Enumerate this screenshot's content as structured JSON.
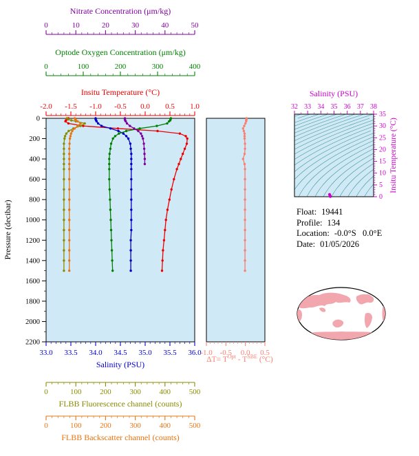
{
  "top_axes": [
    {
      "id": "nitrate",
      "label": "Nitrate Concentration (μm/kg)",
      "color": "#8000a0",
      "ticks": [
        "0",
        "10",
        "20",
        "30",
        "40",
        "50"
      ]
    },
    {
      "id": "oxygen",
      "label": "Optode Oxygen Concentration (μm/kg)",
      "color": "#008000",
      "ticks": [
        "0",
        "100",
        "200",
        "300",
        "400"
      ]
    },
    {
      "id": "insitu-temperature",
      "label": "Insitu Temperature (°C)",
      "color": "#ee0000",
      "ticks": [
        "-2.0",
        "-1.5",
        "-1.0",
        "-0.5",
        "0.0",
        "0.5",
        "1.0"
      ]
    }
  ],
  "bottom_axes": [
    {
      "id": "salinity",
      "label": "Salinity (PSU)",
      "color": "#0000cd",
      "ticks": [
        "33.0",
        "33.5",
        "34.0",
        "34.5",
        "35.0",
        "35.5",
        "36.0"
      ]
    },
    {
      "id": "fluorescence",
      "label": "FLBB Fluorescence channel (counts)",
      "color": "#8b8b00",
      "ticks": [
        "0",
        "100",
        "200",
        "300",
        "400",
        "500"
      ]
    },
    {
      "id": "backscatter",
      "label": "FLBB Backscatter channel (counts)",
      "color": "#e97410",
      "ticks": [
        "0",
        "100",
        "200",
        "300",
        "400",
        "500"
      ]
    }
  ],
  "info": {
    "float_label": "Float:",
    "float_value": "19441",
    "profile_label": "Profile:",
    "profile_value": "134",
    "location_label": "Location:",
    "location_value": "-0.0°S   0.0°E",
    "date_label": "Date:",
    "date_value": "01/05/2026"
  },
  "map": {
    "name": "world-map-hammer-projection",
    "land": "#f2a6ad",
    "ocean": "#ffffff",
    "outline": "#000000"
  },
  "chart_data": [
    {
      "id": "profiles",
      "type": "line",
      "title": "Vertical profiles vs pressure",
      "ylabel": "Pressure (decibar)",
      "ylim": [
        0,
        2200
      ],
      "yticks": [
        0,
        200,
        400,
        600,
        800,
        1000,
        1200,
        1400,
        1600,
        1800,
        2000,
        2200
      ],
      "background": "#cfe9f6",
      "pressure": [
        0,
        10,
        20,
        30,
        50,
        75,
        100,
        125,
        150,
        175,
        200,
        250,
        300,
        350,
        400,
        450,
        500,
        600,
        700,
        800,
        900,
        1000,
        1100,
        1200,
        1300,
        1400,
        1500
      ],
      "series": [
        {
          "name": "Insitu Temperature (°C)",
          "color": "#ee0000",
          "xlim": [
            -2.0,
            1.0
          ],
          "values": [
            -1.55,
            -1.58,
            -1.6,
            -1.61,
            -1.55,
            -1.25,
            -0.55,
            0.25,
            0.7,
            0.82,
            0.85,
            0.84,
            0.8,
            0.76,
            0.72,
            0.68,
            0.64,
            0.58,
            0.53,
            0.49,
            0.45,
            0.42,
            0.4,
            0.38,
            0.36,
            0.35,
            0.34
          ]
        },
        {
          "name": "Salinity (PSU)",
          "color": "#0000cd",
          "xlim": [
            33.0,
            36.0
          ],
          "values": [
            34.0,
            34.0,
            34.01,
            34.02,
            34.05,
            34.12,
            34.3,
            34.46,
            34.56,
            34.62,
            34.66,
            34.7,
            34.71,
            34.72,
            34.72,
            34.72,
            34.72,
            34.72,
            34.72,
            34.72,
            34.72,
            34.72,
            34.72,
            34.71,
            34.71,
            34.71,
            34.71
          ]
        },
        {
          "name": "Optode Oxygen Concentration (μm/kg)",
          "color": "#008000",
          "xlim": [
            0,
            400
          ],
          "values": [
            336,
            335,
            334,
            331,
            326,
            298,
            252,
            216,
            196,
            186,
            180,
            175,
            173,
            171,
            170,
            170,
            170,
            170,
            171,
            172,
            173,
            174,
            175,
            176,
            177,
            178,
            179
          ]
        },
        {
          "name": "Nitrate Concentration (μm/kg)",
          "color": "#8000a0",
          "xlim": [
            0,
            50
          ],
          "pressure": [
            0,
            10,
            20,
            30,
            50,
            75,
            100,
            125,
            150,
            175,
            200,
            250,
            300,
            350,
            400,
            450
          ],
          "values": [
            26.5,
            26.5,
            26.6,
            26.8,
            27.2,
            28.2,
            29.6,
            31.0,
            31.9,
            32.3,
            32.6,
            32.9,
            33.0,
            33.1,
            33.2,
            33.2
          ]
        },
        {
          "name": "FLBB Fluorescence channel (counts)",
          "color": "#8b8b00",
          "xlim": [
            0,
            500
          ],
          "values": [
            70,
            75,
            85,
            100,
            130,
            116,
            92,
            76,
            68,
            64,
            62,
            60,
            60,
            60,
            60,
            60,
            60,
            60,
            60,
            60,
            60,
            60,
            60,
            60,
            60,
            60,
            60
          ]
        },
        {
          "name": "FLBB Backscatter channel (counts)",
          "color": "#e97410",
          "xlim": [
            0,
            500
          ],
          "values": [
            96,
            98,
            101,
            106,
            116,
            106,
            96,
            88,
            84,
            82,
            80,
            79,
            78,
            78,
            78,
            78,
            78,
            78,
            78,
            78,
            78,
            78,
            78,
            78,
            78,
            78,
            78
          ]
        }
      ]
    },
    {
      "id": "delta-t",
      "type": "line",
      "title": "Temperature difference profile",
      "xlim": [
        -1.0,
        0.5
      ],
      "xticks": [
        "-1.0",
        "-0.5",
        "0.0",
        "0.5"
      ],
      "color": "#fa8072",
      "background": "#cfe9f6",
      "xlabel_parts": {
        "prefix": "ΔT= T",
        "sup1": "Opt",
        "mid": " - T",
        "sup2": "SBE",
        "suffix": " (°C)"
      },
      "pressure": [
        0,
        10,
        20,
        30,
        50,
        75,
        100,
        125,
        150,
        175,
        200,
        250,
        300,
        350,
        400,
        450,
        500,
        600,
        700,
        800,
        900,
        1000,
        1100,
        1200,
        1300,
        1400,
        1500
      ],
      "values": [
        0.03,
        0.03,
        0.02,
        0.02,
        0.0,
        -0.03,
        -0.06,
        -0.04,
        -0.02,
        -0.02,
        -0.02,
        -0.01,
        -0.01,
        -0.02,
        -0.06,
        -0.02,
        -0.01,
        -0.01,
        -0.01,
        -0.01,
        -0.01,
        -0.01,
        -0.01,
        -0.01,
        -0.01,
        -0.01,
        -0.01
      ]
    },
    {
      "id": "ts-diagram",
      "type": "scatter",
      "title": "T-S diagram with isopycnal contours",
      "xlabel": "Salinity (PSU)",
      "ylabel": "Insitu Temperature (°C)",
      "xlim": [
        32,
        38
      ],
      "ylim": [
        0,
        35
      ],
      "xticks": [
        32,
        33,
        34,
        35,
        36,
        37,
        38
      ],
      "yticks": [
        0,
        5,
        10,
        15,
        20,
        25,
        30,
        35
      ],
      "color": "#cc00cc",
      "contour_color": "#3f9494",
      "background": "#cfe9f6",
      "points": [
        [
          34.72,
          0.07
        ],
        [
          34.7,
          0.35
        ],
        [
          34.68,
          0.65
        ],
        [
          34.66,
          0.95
        ]
      ]
    }
  ]
}
